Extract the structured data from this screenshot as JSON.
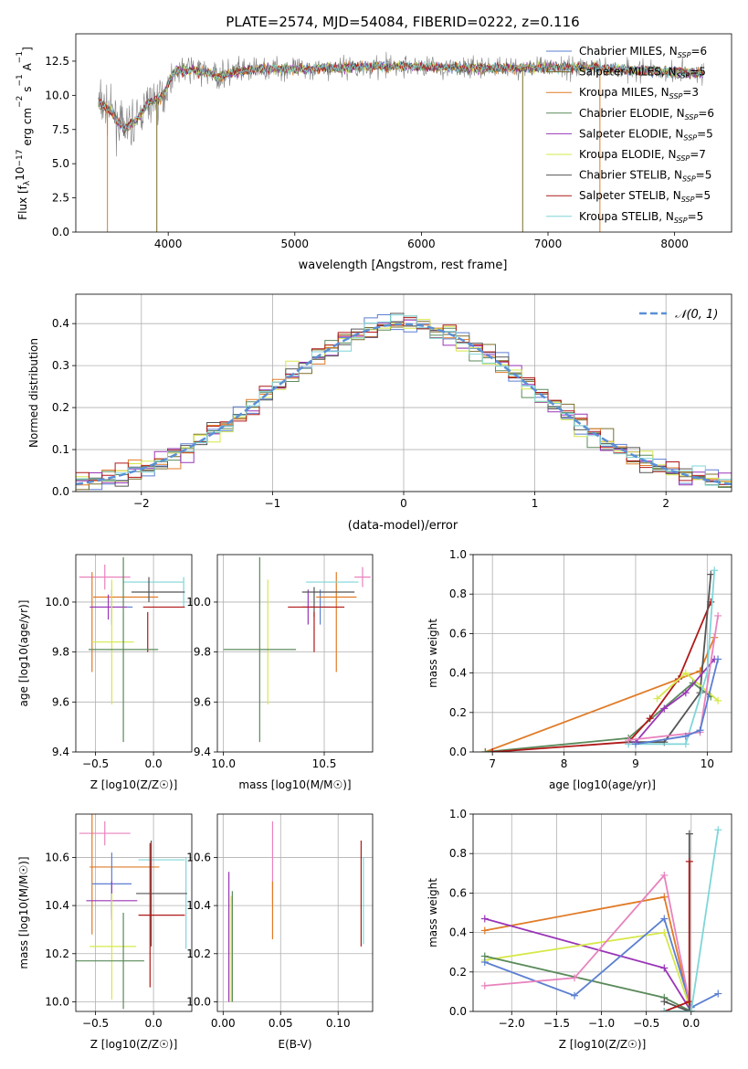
{
  "figure": {
    "title": "PLATE=2574, MJD=54084, FIBERID=0222, z=0.116"
  },
  "models": [
    {
      "name": "Chabrier MILES",
      "nssp": "6",
      "color": "#5b7fd1"
    },
    {
      "name": "Salpeter MILES",
      "nssp": "5",
      "color": "#7a6f2a"
    },
    {
      "name": "Kroupa MILES",
      "nssp": "3",
      "color": "#e07b27"
    },
    {
      "name": "Chabrier ELODIE",
      "nssp": "6",
      "color": "#5a8a5a"
    },
    {
      "name": "Salpeter ELODIE",
      "nssp": "5",
      "color": "#9a35b8"
    },
    {
      "name": "Kroupa ELODIE",
      "nssp": "7",
      "color": "#d6e84a"
    },
    {
      "name": "Chabrier STELIB",
      "nssp": "5",
      "color": "#555555"
    },
    {
      "name": "Salpeter STELIB",
      "nssp": "5",
      "color": "#b01818"
    },
    {
      "name": "Kroupa STELIB",
      "nssp": "5",
      "color": "#7fd6d8"
    }
  ],
  "extra_colors": {
    "pink": "#e882bd",
    "data_gray": "#808080",
    "normal_curve": "#5b8fd6"
  },
  "chart_data": [
    {
      "id": "spectrum",
      "type": "line",
      "xlabel": "wavelength [Angstrom, rest frame]",
      "ylabel": "Flux [f",
      "ylabel_parts": [
        "Flux [f",
        "λ",
        "10",
        "−17",
        " erg cm",
        "−2",
        " s",
        "−1",
        " A",
        "−1",
        "]"
      ],
      "xlim": [
        3270,
        8450
      ],
      "ylim": [
        0,
        14.5
      ],
      "xticks": [
        4000,
        5000,
        6000,
        7000,
        8000
      ],
      "yticks": [
        0.0,
        2.5,
        5.0,
        7.5,
        10.0,
        12.5
      ],
      "ytick_labels": [
        "0.0",
        "2.5",
        "5.0",
        "7.5",
        "10.0",
        "12.5"
      ],
      "grid": false,
      "legend_position": "top-right",
      "x_range_data": [
        3450,
        8230
      ],
      "continuum": {
        "x": [
          3450,
          3550,
          3650,
          3750,
          3850,
          3950,
          4050,
          4200,
          4400,
          4600,
          4800,
          5000,
          5300,
          5600,
          6000,
          6400,
          6800,
          7200,
          7600,
          8000,
          8230
        ],
        "y": [
          9.5,
          8.8,
          7.5,
          8.2,
          9.5,
          9.8,
          11.8,
          11.9,
          11.4,
          11.8,
          12.0,
          11.9,
          12.0,
          12.1,
          12.1,
          12.0,
          12.0,
          12.1,
          11.9,
          11.7,
          11.6
        ]
      },
      "dips": [
        {
          "x": 3520,
          "y": 0.0,
          "series": "Kroupa MILES"
        },
        {
          "x": 3910,
          "y": 0.0,
          "series": "Salpeter MILES"
        },
        {
          "x": 6800,
          "y": 0.0,
          "series": "Salpeter MILES"
        },
        {
          "x": 7410,
          "y": 0.0,
          "series": "Kroupa MILES"
        }
      ]
    },
    {
      "id": "residuals",
      "type": "step",
      "xlabel": "(data-model)/error",
      "ylabel": "Normed distribution",
      "xlim": [
        -2.5,
        2.5
      ],
      "ylim": [
        0,
        0.47
      ],
      "xticks": [
        -2,
        -1,
        0,
        1,
        2
      ],
      "xtick_labels": [
        "−2",
        "−1",
        "0",
        "1",
        "2"
      ],
      "yticks": [
        0.0,
        0.1,
        0.2,
        0.3,
        0.4
      ],
      "ytick_labels": [
        "0.0",
        "0.1",
        "0.2",
        "0.3",
        "0.4"
      ],
      "grid": true,
      "legend_position": "top-right",
      "legend": "𝒩(0, 1)",
      "bin_width": 0.1
    },
    {
      "id": "age-vs-Z",
      "type": "errorbar",
      "xlabel": "Z [log10(Z/Z☉)]",
      "ylabel": "age  [log10(age/yr)]",
      "xlim": [
        -0.67,
        0.33
      ],
      "ylim": [
        9.4,
        10.19
      ],
      "xticks": [
        -0.5,
        0.0
      ],
      "xtick_labels": [
        "−0.5",
        "0.0"
      ],
      "yticks": [
        9.4,
        9.6,
        9.8,
        10.0
      ],
      "ytick_labels": [
        "9.4",
        "9.6",
        "9.8",
        "10.0"
      ],
      "grid": true,
      "points": [
        {
          "c": "pink",
          "x": -0.42,
          "xerr": 0.22,
          "y": 10.1,
          "yerr": 0.05
        },
        {
          "c": "Chabrier MILES",
          "x": -0.36,
          "xerr": 0.18,
          "y": 9.98,
          "yerr": 0.07
        },
        {
          "c": "Kroupa MILES",
          "x": -0.53,
          "xerr": 0.0,
          "y": 9.92,
          "yerr": 0.2
        },
        {
          "c": "Kroupa MILES",
          "x": -0.24,
          "xerr": 0.28,
          "y": 10.02,
          "yerr": 0.0
        },
        {
          "c": "Kroupa STELIB",
          "x": 0.26,
          "xerr": 0.0,
          "y": 10.04,
          "yerr": 0.06
        },
        {
          "c": "Kroupa STELIB",
          "x": 0.0,
          "xerr": 0.26,
          "y": 10.08,
          "yerr": 0.0
        },
        {
          "c": "Salpeter ELODIE",
          "x": -0.39,
          "xerr": 0.16,
          "y": 9.98,
          "yerr": 0.05
        },
        {
          "c": "Chabrier STELIB",
          "x": 0.04,
          "xerr": 0.23,
          "y": 10.04,
          "yerr": 0.0
        },
        {
          "c": "Chabrier STELIB",
          "x": -0.04,
          "xerr": 0.0,
          "y": 10.05,
          "yerr": 0.05
        },
        {
          "c": "Salpeter STELIB",
          "x": -0.05,
          "xerr": 0.0,
          "y": 9.88,
          "yerr": 0.08
        },
        {
          "c": "Salpeter STELIB",
          "x": 0.09,
          "xerr": 0.18,
          "y": 9.98,
          "yerr": 0.0
        },
        {
          "c": "Kroupa ELODIE",
          "x": -0.35,
          "xerr": 0.18,
          "y": 9.84,
          "yerr": 0.0
        },
        {
          "c": "Kroupa ELODIE",
          "x": -0.36,
          "xerr": 0.0,
          "y": 9.84,
          "yerr": 0.25
        },
        {
          "c": "Chabrier ELODIE",
          "x": -0.26,
          "xerr": 0.3,
          "y": 9.81,
          "yerr": 0.0
        },
        {
          "c": "Chabrier ELODIE",
          "x": -0.26,
          "xerr": 0.0,
          "y": 9.81,
          "yerr": 0.37
        }
      ]
    },
    {
      "id": "age-vs-mass",
      "type": "errorbar",
      "xlabel": "mass [log10(M/M☉)]",
      "ylabel": "",
      "xlim": [
        9.97,
        10.74
      ],
      "ylim": [
        9.4,
        10.19
      ],
      "xticks": [
        10.0,
        10.5
      ],
      "xtick_labels": [
        "10.0",
        "10.5"
      ],
      "yticks": [
        9.4,
        9.6,
        9.8,
        10.0
      ],
      "ytick_labels": [
        "9.4",
        "9.6",
        "9.8",
        "10.0"
      ],
      "grid": true,
      "points": [
        {
          "c": "pink",
          "x": 10.69,
          "xerr": 0.04,
          "y": 10.1,
          "yerr": 0.04
        },
        {
          "c": "Chabrier MILES",
          "x": 10.48,
          "xerr": 0.05,
          "y": 9.98,
          "yerr": 0.07
        },
        {
          "c": "Kroupa MILES",
          "x": 10.56,
          "xerr": 0.1,
          "y": 10.02,
          "yerr": 0.0
        },
        {
          "c": "Kroupa MILES",
          "x": 10.56,
          "xerr": 0.0,
          "y": 9.92,
          "yerr": 0.2
        },
        {
          "c": "Kroupa STELIB",
          "x": 10.54,
          "xerr": 0.13,
          "y": 10.08,
          "yerr": 0.0
        },
        {
          "c": "Salpeter ELODIE",
          "x": 10.42,
          "xerr": 0.03,
          "y": 9.98,
          "yerr": 0.07
        },
        {
          "c": "Chabrier STELIB",
          "x": 10.52,
          "xerr": 0.13,
          "y": 10.04,
          "yerr": 0.0
        },
        {
          "c": "Chabrier STELIB",
          "x": 10.45,
          "xerr": 0.0,
          "y": 10.0,
          "yerr": 0.06
        },
        {
          "c": "Salpeter STELIB",
          "x": 10.46,
          "xerr": 0.14,
          "y": 9.98,
          "yerr": 0.0
        },
        {
          "c": "Salpeter STELIB",
          "x": 10.45,
          "xerr": 0.0,
          "y": 9.88,
          "yerr": 0.08
        },
        {
          "c": "Kroupa ELODIE",
          "x": 10.22,
          "xerr": 0.0,
          "y": 9.84,
          "yerr": 0.25
        },
        {
          "c": "Chabrier ELODIE",
          "x": 10.18,
          "xerr": 0.18,
          "y": 9.81,
          "yerr": 0.0
        },
        {
          "c": "Chabrier ELODIE",
          "x": 10.18,
          "xerr": 0.0,
          "y": 9.81,
          "yerr": 0.37
        }
      ]
    },
    {
      "id": "weight-vs-age",
      "type": "line",
      "xlabel": "age  [log10(age/yr)]",
      "ylabel": "mass weight",
      "xlim": [
        6.73,
        10.34
      ],
      "ylim": [
        0,
        1.0
      ],
      "xticks": [
        7,
        8,
        9,
        10
      ],
      "xtick_labels": [
        "7",
        "8",
        "9",
        "10"
      ],
      "yticks": [
        0.0,
        0.2,
        0.4,
        0.6,
        0.8,
        1.0
      ],
      "ytick_labels": [
        "0.0",
        "0.2",
        "0.4",
        "0.6",
        "0.8",
        "1.0"
      ],
      "grid": true,
      "series": [
        {
          "c": "Kroupa MILES",
          "x": [
            6.9,
            9.9,
            10.1
          ],
          "y": [
            0.0,
            0.41,
            0.58
          ]
        },
        {
          "c": "Chabrier ELODIE",
          "x": [
            6.9,
            8.9,
            9.8,
            10.05
          ],
          "y": [
            0.0,
            0.07,
            0.35,
            0.28
          ]
        },
        {
          "c": "Salpeter STELIB",
          "x": [
            7.0,
            8.9,
            9.2,
            9.6,
            10.05
          ],
          "y": [
            0.0,
            0.05,
            0.17,
            0.37,
            0.76
          ]
        },
        {
          "c": "Chabrier STELIB",
          "x": [
            8.9,
            9.4,
            9.9,
            10.05
          ],
          "y": [
            0.05,
            0.05,
            0.3,
            0.9
          ]
        },
        {
          "c": "Kroupa ELODIE",
          "x": [
            9.3,
            9.7,
            10.15
          ],
          "y": [
            0.27,
            0.4,
            0.26
          ]
        },
        {
          "c": "Salpeter ELODIE",
          "x": [
            9.0,
            9.4,
            9.7,
            10.1
          ],
          "y": [
            0.05,
            0.22,
            0.3,
            0.47
          ]
        },
        {
          "c": "Kroupa STELIB",
          "x": [
            8.9,
            9.7,
            10.0,
            10.1
          ],
          "y": [
            0.04,
            0.04,
            0.4,
            0.92
          ]
        },
        {
          "c": "pink",
          "x": [
            8.9,
            9.9,
            10.15
          ],
          "y": [
            0.06,
            0.1,
            0.69
          ]
        },
        {
          "c": "Chabrier MILES",
          "x": [
            9.0,
            9.7,
            9.9,
            10.15
          ],
          "y": [
            0.04,
            0.08,
            0.11,
            0.47
          ]
        }
      ]
    },
    {
      "id": "mass-vs-Z",
      "type": "errorbar",
      "xlabel": "Z [log10(Z/Z☉)]",
      "ylabel": "mass [log10(M/M☉)]",
      "xlim": [
        -0.67,
        0.33
      ],
      "ylim": [
        9.96,
        10.78
      ],
      "xticks": [
        -0.5,
        0.0
      ],
      "xtick_labels": [
        "−0.5",
        "0.0"
      ],
      "yticks": [
        10.0,
        10.2,
        10.4,
        10.6
      ],
      "ytick_labels": [
        "10.0",
        "10.2",
        "10.4",
        "10.6"
      ],
      "grid": true,
      "points": [
        {
          "c": "pink",
          "x": -0.42,
          "xerr": 0.22,
          "y": 10.7,
          "yerr": 0.05
        },
        {
          "c": "Kroupa MILES",
          "x": -0.53,
          "xerr": 0.0,
          "y": 10.56,
          "yerr": 0.28
        },
        {
          "c": "Kroupa MILES",
          "x": -0.25,
          "xerr": 0.3,
          "y": 10.56,
          "yerr": 0.0
        },
        {
          "c": "Kroupa STELIB",
          "x": 0.28,
          "xerr": 0.0,
          "y": 10.41,
          "yerr": 0.19
        },
        {
          "c": "Kroupa STELIB",
          "x": 0.07,
          "xerr": 0.2,
          "y": 10.59,
          "yerr": 0.0
        },
        {
          "c": "Chabrier MILES",
          "x": -0.36,
          "xerr": 0.17,
          "y": 10.49,
          "yerr": 0.13
        },
        {
          "c": "Salpeter ELODIE",
          "x": -0.36,
          "xerr": 0.22,
          "y": 10.42,
          "yerr": 0.08
        },
        {
          "c": "Chabrier STELIB",
          "x": 0.07,
          "xerr": 0.22,
          "y": 10.45,
          "yerr": 0.0
        },
        {
          "c": "Chabrier STELIB",
          "x": -0.02,
          "xerr": 0.0,
          "y": 10.45,
          "yerr": 0.22
        },
        {
          "c": "Salpeter STELIB",
          "x": 0.07,
          "xerr": 0.2,
          "y": 10.36,
          "yerr": 0.0
        },
        {
          "c": "Salpeter STELIB",
          "x": -0.03,
          "xerr": 0.0,
          "y": 10.36,
          "yerr": 0.3
        },
        {
          "c": "Kroupa ELODIE",
          "x": -0.35,
          "xerr": 0.2,
          "y": 10.23,
          "yerr": 0.0
        },
        {
          "c": "Kroupa ELODIE",
          "x": -0.36,
          "xerr": 0.0,
          "y": 10.23,
          "yerr": 0.22
        },
        {
          "c": "Chabrier ELODIE",
          "x": -0.38,
          "xerr": 0.3,
          "y": 10.17,
          "yerr": 0.0
        },
        {
          "c": "Chabrier ELODIE",
          "x": -0.26,
          "xerr": 0.0,
          "y": 10.17,
          "yerr": 0.2
        }
      ]
    },
    {
      "id": "mass-vs-ebv",
      "type": "errorbar",
      "xlabel": "E(B-V)",
      "ylabel": "",
      "xlim": [
        -0.005,
        0.13
      ],
      "ylim": [
        9.96,
        10.78
      ],
      "xticks": [
        0.0,
        0.05,
        0.1
      ],
      "xtick_labels": [
        "0.00",
        "0.05",
        "0.10"
      ],
      "yticks": [
        10.0,
        10.2,
        10.4,
        10.6
      ],
      "ytick_labels": [
        "10.0",
        "10.2",
        "10.4",
        "10.6"
      ],
      "grid": true,
      "points": [
        {
          "c": "pink",
          "x": 0.043,
          "xerr": 0.0,
          "y": 10.58,
          "yerr": 0.17
        },
        {
          "c": "Kroupa MILES",
          "x": 0.043,
          "xerr": 0.0,
          "y": 10.38,
          "yerr": 0.12
        },
        {
          "c": "Salpeter ELODIE",
          "x": 0.005,
          "xerr": 0.0,
          "y": 10.27,
          "yerr": 0.27
        },
        {
          "c": "Kroupa ELODIE",
          "x": 0.007,
          "xerr": 0.0,
          "y": 10.22,
          "yerr": 0.22
        },
        {
          "c": "Chabrier ELODIE",
          "x": 0.008,
          "xerr": 0.0,
          "y": 10.23,
          "yerr": 0.23
        },
        {
          "c": "Salpeter STELIB",
          "x": 0.12,
          "xerr": 0.0,
          "y": 10.45,
          "yerr": 0.22
        },
        {
          "c": "Kroupa STELIB",
          "x": 0.122,
          "xerr": 0.0,
          "y": 10.42,
          "yerr": 0.18
        }
      ]
    },
    {
      "id": "weight-vs-Z",
      "type": "line",
      "xlabel": "Z [log10(Z/Z☉)]",
      "ylabel": "mass weight",
      "xlim": [
        -2.43,
        0.45
      ],
      "ylim": [
        0,
        1.0
      ],
      "xticks": [
        -2.0,
        -1.5,
        -1.0,
        -0.5,
        0.0
      ],
      "xtick_labels": [
        "−2.0",
        "−1.5",
        "−1.0",
        "−0.5",
        "0.0"
      ],
      "yticks": [
        0.0,
        0.2,
        0.4,
        0.6,
        0.8,
        1.0
      ],
      "ytick_labels": [
        "0.0",
        "0.2",
        "0.4",
        "0.6",
        "0.8",
        "1.0"
      ],
      "grid": true,
      "series": [
        {
          "c": "Kroupa MILES",
          "x": [
            -2.3,
            -0.3,
            0.0
          ],
          "y": [
            0.41,
            0.58,
            0.0
          ]
        },
        {
          "c": "Salpeter ELODIE",
          "x": [
            -2.3,
            -0.3,
            0.0
          ],
          "y": [
            0.47,
            0.22,
            0.0
          ]
        },
        {
          "c": "Kroupa ELODIE",
          "x": [
            -2.3,
            -0.3,
            0.0
          ],
          "y": [
            0.26,
            0.4,
            0.0
          ]
        },
        {
          "c": "Chabrier ELODIE",
          "x": [
            -2.3,
            -0.3,
            0.0
          ],
          "y": [
            0.28,
            0.07,
            0.0
          ]
        },
        {
          "c": "Chabrier MILES",
          "x": [
            -2.3,
            -1.3,
            -0.3,
            0.0,
            0.3
          ],
          "y": [
            0.25,
            0.08,
            0.47,
            0.02,
            0.09
          ]
        },
        {
          "c": "pink",
          "x": [
            -2.3,
            -1.3,
            -0.3,
            0.0
          ],
          "y": [
            0.13,
            0.17,
            0.69,
            0.0
          ]
        },
        {
          "c": "Chabrier STELIB",
          "x": [
            -0.3,
            -0.02,
            -0.02
          ],
          "y": [
            0.05,
            0.0,
            0.9
          ]
        },
        {
          "c": "Salpeter STELIB",
          "x": [
            -0.3,
            -0.02,
            -0.02
          ],
          "y": [
            0.0,
            0.05,
            0.76
          ]
        },
        {
          "c": "Kroupa STELIB",
          "x": [
            -0.3,
            0.0,
            0.3
          ],
          "y": [
            0.0,
            0.0,
            0.92
          ]
        }
      ]
    }
  ]
}
